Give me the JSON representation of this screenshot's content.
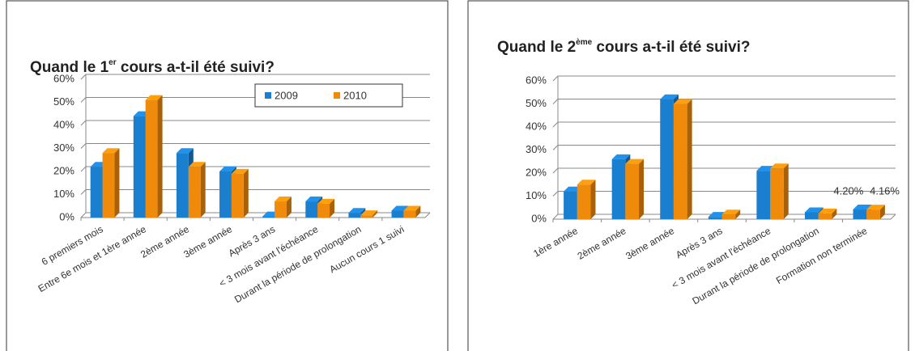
{
  "chart_data": [
    {
      "type": "bar",
      "title": {
        "before": "Quand le 1",
        "sup": "er",
        "after": " cours a-t-il été suivi?"
      },
      "categories": [
        "6 premiers mois",
        "Entre 6e mois et 1ère année",
        "2ème année",
        "3ème année",
        "Après 3 ans",
        "< 3 mois avant l'échéance",
        "Durant la période de prolongation",
        "Aucun cours 1 suivi"
      ],
      "series": [
        {
          "name": "2009",
          "color": "#1b7fcf",
          "values": [
            22,
            44,
            28,
            20,
            0.5,
            7,
            2,
            3
          ]
        },
        {
          "name": "2010",
          "color": "#f08a0b",
          "values": [
            28,
            51,
            22,
            19,
            7,
            6,
            1,
            3
          ]
        }
      ],
      "ylim": [
        0,
        60
      ],
      "yticks": [
        {
          "value": 0,
          "label": "0%"
        },
        {
          "value": 10,
          "label": "10%"
        },
        {
          "value": 20,
          "label": "20%"
        },
        {
          "value": 30,
          "label": "30%"
        },
        {
          "value": 40,
          "label": "40%"
        },
        {
          "value": 50,
          "label": "50%"
        },
        {
          "value": 60,
          "label": "60%"
        }
      ],
      "grid": true,
      "legend": "top-right"
    },
    {
      "type": "bar",
      "title": {
        "before": "Quand le 2",
        "sup": "ème",
        "after": " cours a-t-il été suivi?"
      },
      "categories": [
        "1ère année",
        "2ème année",
        "3ème année",
        "Après 3 ans",
        "< 3 mois avant l'échéance",
        "Durant la période de prolongation",
        "Formation non terminée"
      ],
      "series": [
        {
          "name": "2009",
          "color": "#1b7fcf",
          "values": [
            12,
            26,
            52,
            1,
            21,
            3,
            4.2
          ],
          "value_labels": [
            null,
            null,
            null,
            null,
            null,
            null,
            "4.20%"
          ]
        },
        {
          "name": "2010",
          "color": "#f08a0b",
          "values": [
            15,
            24,
            50,
            2,
            22,
            2.5,
            4.16
          ],
          "value_labels": [
            null,
            null,
            null,
            null,
            null,
            null,
            "4.16%"
          ]
        }
      ],
      "ylim": [
        0,
        60
      ],
      "yticks": [
        {
          "value": 0,
          "label": "0%"
        },
        {
          "value": 10,
          "label": "10%"
        },
        {
          "value": 20,
          "label": "20%"
        },
        {
          "value": 30,
          "label": "30%"
        },
        {
          "value": 40,
          "label": "40%"
        },
        {
          "value": 50,
          "label": "50%"
        },
        {
          "value": 60,
          "label": "60%"
        }
      ],
      "grid": true,
      "legend": "none"
    }
  ]
}
